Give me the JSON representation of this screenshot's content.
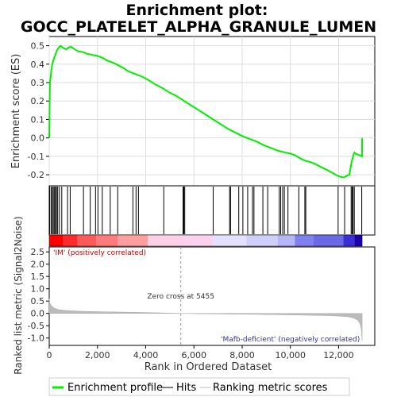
{
  "title_line1": "Enrichment plot:",
  "title_line2": "GOCC_PLATELET_ALPHA_GRANULE_LUMEN",
  "chart_data": {
    "type": "line",
    "x_range": [
      0,
      13500
    ],
    "xlabel": "Rank in Ordered Dataset",
    "x_ticks": [
      "0",
      "2,000",
      "4,000",
      "6,000",
      "8,000",
      "10,000",
      "12,000"
    ],
    "x_tick_values": [
      0,
      2000,
      4000,
      6000,
      8000,
      10000,
      12000
    ],
    "n_genes": 12975,
    "es_panel": {
      "ylabel": "Enrichment score (ES)",
      "ylim": [
        -0.26,
        0.55
      ],
      "y_ticks": [
        "0.5",
        "0.4",
        "0.3",
        "0.2",
        "0.1",
        "0.0",
        "-0.1",
        "-0.2"
      ],
      "y_tick_values": [
        0.5,
        0.4,
        0.3,
        0.2,
        0.1,
        0.0,
        -0.1,
        -0.2
      ],
      "grid": true,
      "series": [
        {
          "color": "#00ee00",
          "x": [
            0,
            30,
            60,
            90,
            130,
            170,
            220,
            280,
            340,
            400,
            460,
            560,
            700,
            800,
            900,
            1000,
            1200,
            1400,
            1600,
            1800,
            2000,
            2200,
            2400,
            2700,
            3000,
            3300,
            3500,
            3800,
            4100,
            4400,
            4700,
            5000,
            5300,
            5600,
            5900,
            6200,
            6500,
            6800,
            7100,
            7400,
            7700,
            8000,
            8300,
            8600,
            8900,
            9200,
            9500,
            9800,
            10000,
            10200,
            10400,
            10550,
            10650,
            10800,
            11000,
            11300,
            11600,
            11950,
            12050,
            12200,
            12350,
            12450,
            12500,
            12540,
            12580,
            12620,
            12660,
            12700,
            12970,
            12975
          ],
          "y": [
            0.0,
            0.3,
            0.33,
            0.37,
            0.4,
            0.42,
            0.44,
            0.46,
            0.48,
            0.49,
            0.5,
            0.49,
            0.48,
            0.49,
            0.495,
            0.485,
            0.47,
            0.465,
            0.455,
            0.45,
            0.445,
            0.435,
            0.42,
            0.405,
            0.385,
            0.36,
            0.35,
            0.335,
            0.315,
            0.29,
            0.27,
            0.245,
            0.225,
            0.2,
            0.175,
            0.15,
            0.125,
            0.1,
            0.075,
            0.05,
            0.03,
            0.01,
            -0.005,
            -0.02,
            -0.04,
            -0.055,
            -0.07,
            -0.08,
            -0.085,
            -0.095,
            -0.11,
            -0.12,
            -0.125,
            -0.13,
            -0.14,
            -0.16,
            -0.18,
            -0.205,
            -0.21,
            -0.215,
            -0.205,
            -0.2,
            -0.16,
            -0.13,
            -0.11,
            -0.09,
            -0.08,
            -0.085,
            -0.1,
            0.0
          ]
        }
      ]
    },
    "hits": [
      20,
      80,
      130,
      170,
      220,
      260,
      300,
      350,
      420,
      520,
      760,
      870,
      1420,
      1700,
      1920,
      2020,
      2200,
      2530,
      2840,
      3470,
      3600,
      3700,
      4750,
      5550,
      5580,
      5620,
      6800,
      7480,
      7520,
      7860,
      8030,
      8230,
      8430,
      8490,
      8860,
      9060,
      9540,
      9600,
      9680,
      9750,
      9900,
      10350,
      10600,
      10640,
      11980,
      12250,
      12520,
      12560,
      12600,
      12650,
      12960
    ],
    "ranked_metric": {
      "ylabel": "Ranked list metric (Signal2Noise)",
      "ylim": [
        -1.3,
        2.7
      ],
      "y_ticks": [
        "2.5",
        "2.0",
        "1.5",
        "1.0",
        "0.5",
        "0.0",
        "-0.5",
        "-1.0"
      ],
      "y_tick_values": [
        2.5,
        2.0,
        1.5,
        1.0,
        0.5,
        0.0,
        -0.5,
        -1.0
      ],
      "zero_cross_label": "Zero cross at 5455",
      "zero_cross": 5455,
      "x": [
        0,
        30,
        100,
        200,
        400,
        800,
        1500,
        2500,
        3500,
        4500,
        5455,
        6500,
        7500,
        8500,
        9500,
        10500,
        11500,
        12000,
        12400,
        12650,
        12800,
        12900,
        12950,
        12975
      ],
      "y": [
        0.6,
        0.42,
        0.3,
        0.22,
        0.15,
        0.11,
        0.08,
        0.06,
        0.045,
        0.025,
        0.0,
        -0.02,
        -0.03,
        -0.04,
        -0.055,
        -0.07,
        -0.09,
        -0.11,
        -0.14,
        -0.2,
        -0.28,
        -0.45,
        -0.7,
        -1.1
      ]
    },
    "positive_label": "'IM' (positively correlated)",
    "negative_label": "'Mafb-deficient' (negatively correlated)"
  },
  "legend": {
    "items": [
      {
        "label": "Enrichment profile",
        "color": "#00ee00"
      },
      {
        "label": "Hits",
        "color": "#000000"
      },
      {
        "label": "Ranking metric scores",
        "color": "#bbbbbb"
      }
    ]
  }
}
